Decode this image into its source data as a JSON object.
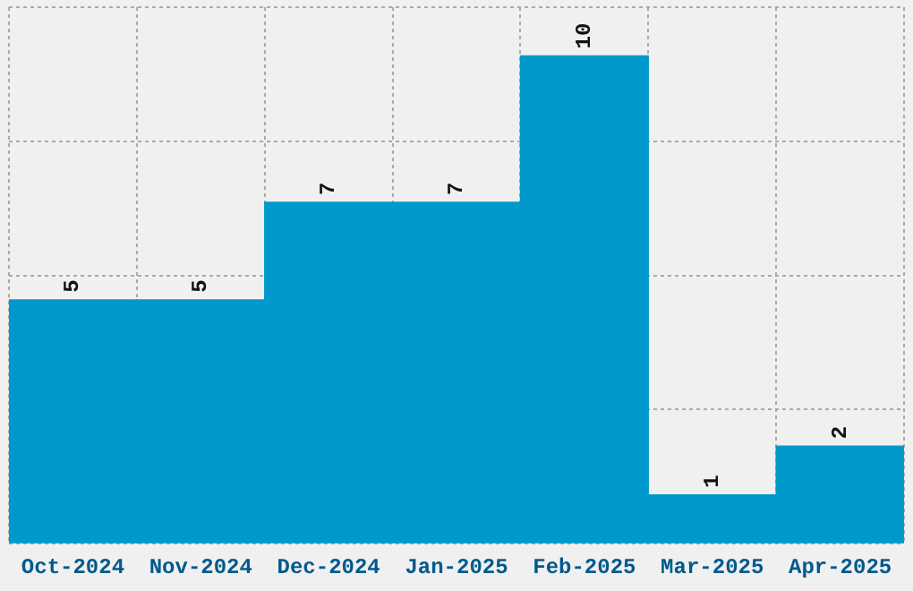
{
  "chart_data": {
    "type": "bar",
    "categories": [
      "Oct-2024",
      "Nov-2024",
      "Dec-2024",
      "Jan-2025",
      "Feb-2025",
      "Mar-2025",
      "Apr-2025"
    ],
    "values": [
      5,
      5,
      7,
      7,
      10,
      1,
      2
    ],
    "color": "#0099cc",
    "ylim": [
      0,
      11
    ],
    "yticks": [
      {
        "value": 0,
        "label": null
      },
      {
        "value": 2.75,
        "label": null
      },
      {
        "value": 5.5,
        "label": null
      },
      {
        "value": 8.25,
        "label": null
      },
      {
        "value": 11,
        "label": null
      }
    ],
    "tick_labels": "x",
    "grid": true,
    "legend": false,
    "data_labels": true
  }
}
